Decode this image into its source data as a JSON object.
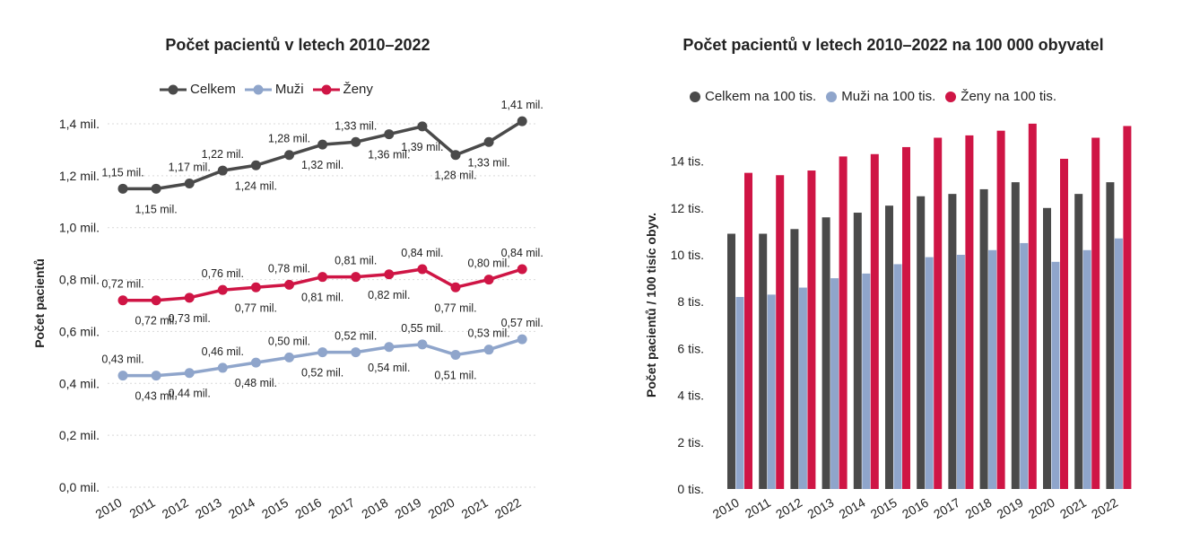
{
  "chart_data": [
    {
      "type": "line",
      "title": "Počet pacientů v letech 2010–2022",
      "ylabel": "Počet pacientů",
      "xlabel": "",
      "categories": [
        "2010",
        "2011",
        "2012",
        "2013",
        "2014",
        "2015",
        "2016",
        "2017",
        "2018",
        "2019",
        "2020",
        "2021",
        "2022"
      ],
      "ylim": [
        0,
        1.4
      ],
      "yticks": [
        "0,0 mil.",
        "0,2 mil.",
        "0,4 mil.",
        "0,6 mil.",
        "0,8 mil.",
        "1,0 mil.",
        "1,2 mil.",
        "1,4 mil."
      ],
      "legend_position": "top",
      "grid": true,
      "series": [
        {
          "name": "Celkem",
          "color": "#4a4a4a",
          "values": [
            1.15,
            1.15,
            1.17,
            1.22,
            1.24,
            1.28,
            1.32,
            1.33,
            1.36,
            1.39,
            1.28,
            1.33,
            1.41
          ],
          "labels": [
            "1,15 mil.",
            "1,15 mil.",
            "1,17 mil.",
            "1,22 mil.",
            "1,24 mil.",
            "1,28 mil.",
            "1,32 mil.",
            "1,33 mil.",
            "1,36 mil.",
            "1,39 mil.",
            "1,28 mil.",
            "1,33 mil.",
            "1,41 mil."
          ]
        },
        {
          "name": "Muži",
          "color": "#8fa5cb",
          "values": [
            0.43,
            0.43,
            0.44,
            0.46,
            0.48,
            0.5,
            0.52,
            0.52,
            0.54,
            0.55,
            0.51,
            0.53,
            0.57
          ],
          "labels": [
            "0,43 mil.",
            "0,43 mil.",
            "0,44 mil.",
            "0,46 mil.",
            "0,48 mil.",
            "0,50 mil.",
            "0,52 mil.",
            "0,52 mil.",
            "0,54 mil.",
            "0,55 mil.",
            "0,51 mil.",
            "0,53 mil.",
            "0,57 mil."
          ]
        },
        {
          "name": "Ženy",
          "color": "#cf1545",
          "values": [
            0.72,
            0.72,
            0.73,
            0.76,
            0.77,
            0.78,
            0.81,
            0.81,
            0.82,
            0.84,
            0.77,
            0.8,
            0.84
          ],
          "labels": [
            "0,72 mil.",
            "0,72 mil.",
            "0,73 mil.",
            "0,76 mil.",
            "0,77 mil.",
            "0,78 mil.",
            "0,81 mil.",
            "0,81 mil.",
            "0,82 mil.",
            "0,84 mil.",
            "0,77 mil.",
            "0,80 mil.",
            "0,84 mil."
          ]
        }
      ]
    },
    {
      "type": "bar",
      "title": "Počet pacientů v letech 2010–2022 na 100 000 obyvatel",
      "ylabel": "Počet pacientů / 100 tisíc obyv.",
      "xlabel": "",
      "categories": [
        "2010",
        "2011",
        "2012",
        "2013",
        "2014",
        "2015",
        "2016",
        "2017",
        "2018",
        "2019",
        "2020",
        "2021",
        "2022"
      ],
      "ylim": [
        0,
        16
      ],
      "yticks": [
        "0 tis.",
        "2 tis.",
        "4 tis.",
        "6 tis.",
        "8 tis.",
        "10 tis.",
        "12 tis.",
        "14 tis."
      ],
      "legend_position": "top",
      "grid": false,
      "series": [
        {
          "name": "Celkem na 100 tis.",
          "color": "#4a4a4a",
          "values": [
            10.9,
            10.9,
            11.1,
            11.6,
            11.8,
            12.1,
            12.5,
            12.6,
            12.8,
            13.1,
            12.0,
            12.6,
            13.1
          ]
        },
        {
          "name": "Muži na 100 tis.",
          "color": "#8fa5cb",
          "values": [
            8.2,
            8.3,
            8.6,
            9.0,
            9.2,
            9.6,
            9.9,
            10.0,
            10.2,
            10.5,
            9.7,
            10.2,
            10.7
          ]
        },
        {
          "name": "Ženy na 100 tis.",
          "color": "#cf1545",
          "values": [
            13.5,
            13.4,
            13.6,
            14.2,
            14.3,
            14.6,
            15.0,
            15.1,
            15.3,
            15.6,
            14.1,
            15.0,
            15.5
          ]
        }
      ]
    }
  ]
}
